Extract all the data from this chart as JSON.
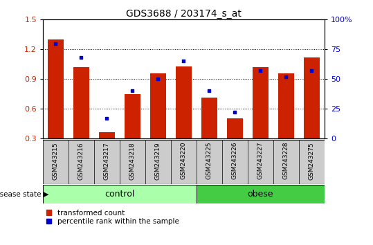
{
  "title": "GDS3688 / 203174_s_at",
  "samples": [
    "GSM243215",
    "GSM243216",
    "GSM243217",
    "GSM243218",
    "GSM243219",
    "GSM243220",
    "GSM243225",
    "GSM243226",
    "GSM243227",
    "GSM243228",
    "GSM243275"
  ],
  "transformed_count": [
    1.3,
    1.02,
    0.36,
    0.75,
    0.96,
    1.03,
    0.71,
    0.5,
    1.02,
    0.96,
    1.12
  ],
  "percentile_rank": [
    80,
    68,
    17,
    40,
    50,
    65,
    40,
    22,
    57,
    52,
    57
  ],
  "ylim_left": [
    0.3,
    1.5
  ],
  "ylim_right": [
    0,
    100
  ],
  "yticks_left": [
    0.3,
    0.6,
    0.9,
    1.2,
    1.5
  ],
  "yticks_right": [
    0,
    25,
    50,
    75,
    100
  ],
  "ytick_labels_right": [
    "0",
    "25",
    "50",
    "75",
    "100%"
  ],
  "control_indices": [
    0,
    1,
    2,
    3,
    4,
    5
  ],
  "obese_indices": [
    6,
    7,
    8,
    9,
    10
  ],
  "bar_color": "#cc2200",
  "dot_color": "#0000cc",
  "control_color": "#aaffaa",
  "obese_color": "#44cc44",
  "plot_bg_color": "#ffffff",
  "label_bg_color": "#cccccc",
  "grid_color": "#000000",
  "legend_square_red": "#cc2200",
  "legend_square_blue": "#0000cc"
}
